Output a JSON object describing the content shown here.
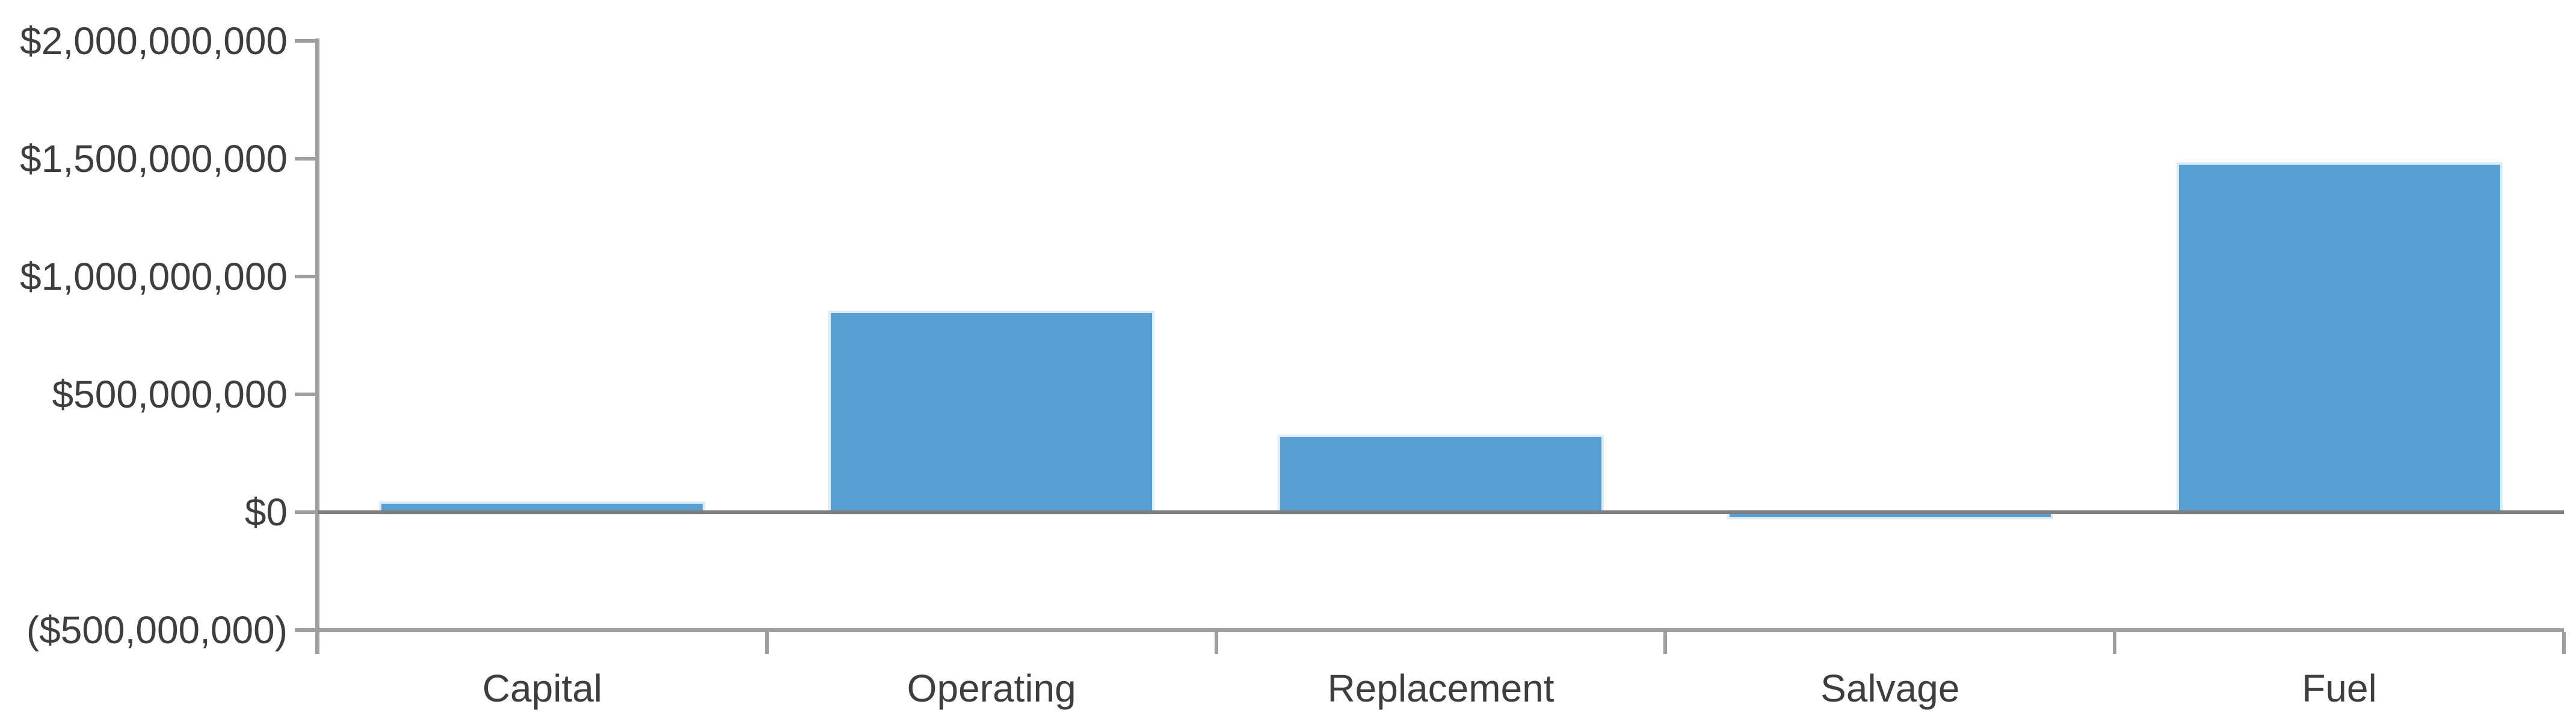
{
  "chart_data": {
    "type": "bar",
    "title": "",
    "xlabel": "",
    "ylabel": "",
    "categories": [
      "Capital",
      "Operating",
      "Replacement",
      "Salvage",
      "Fuel"
    ],
    "values": [
      35000000,
      845000000,
      320000000,
      -20000000,
      1475000000
    ],
    "ylim": [
      -500000000,
      2000000000
    ],
    "y_tick_interval": 500000000,
    "y_ticks": [
      {
        "value": 2000000000,
        "label": "$2,000,000,000"
      },
      {
        "value": 1500000000,
        "label": "$1,500,000,000"
      },
      {
        "value": 1000000000,
        "label": "$1,000,000,000"
      },
      {
        "value": 500000000,
        "label": "$500,000,000"
      },
      {
        "value": 0,
        "label": "$0"
      },
      {
        "value": -500000000,
        "label": "($500,000,000)"
      }
    ],
    "grid": "off",
    "legend": "none"
  },
  "colors": {
    "bar_fill": "#58A0D3",
    "bar_edge": "#DCEBF7",
    "axis_line": "#9E9E9E",
    "zero_line": "#7F7F7F",
    "label_text": "#3E3E3E"
  }
}
